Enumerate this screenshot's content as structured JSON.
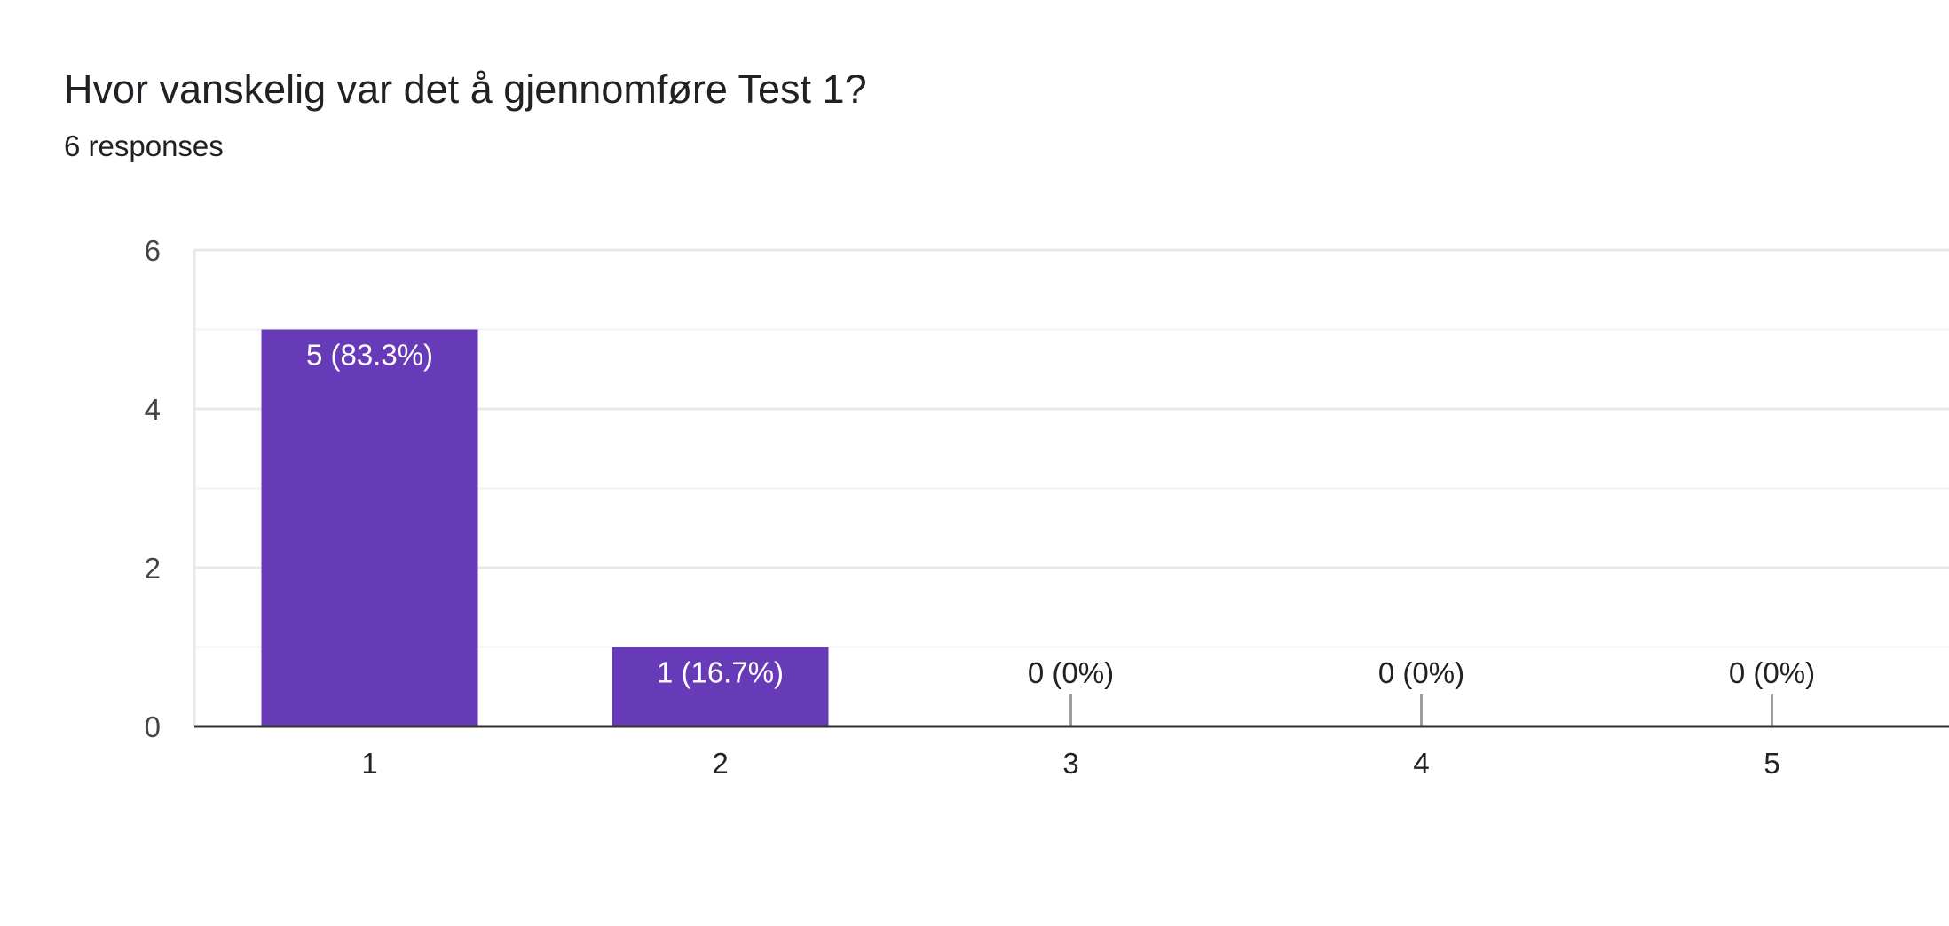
{
  "header": {
    "title": "Hvor vanskelig var det å gjennomføre Test 1?",
    "responses": "6 responses"
  },
  "colors": {
    "bar": "#673ab7",
    "grid": "#e8e8e8",
    "grid_minor": "#f2f2f2",
    "axis": "#333333",
    "zero_tick": "#9e9e9e",
    "label_inside": "#ffffff",
    "label_outside": "#212121"
  },
  "chart_data": {
    "type": "bar",
    "title": "Hvor vanskelig var det å gjennomføre Test 1?",
    "categories": [
      "1",
      "2",
      "3",
      "4",
      "5"
    ],
    "values": [
      5,
      1,
      0,
      0,
      0
    ],
    "data_labels": [
      "5 (83.3%)",
      "1 (16.7%)",
      "0 (0%)",
      "0 (0%)",
      "0 (0%)"
    ],
    "xlabel": "",
    "ylabel": "",
    "ylim": [
      0,
      6
    ],
    "yticks": [
      "0",
      "2",
      "4",
      "6"
    ],
    "grid": true
  }
}
